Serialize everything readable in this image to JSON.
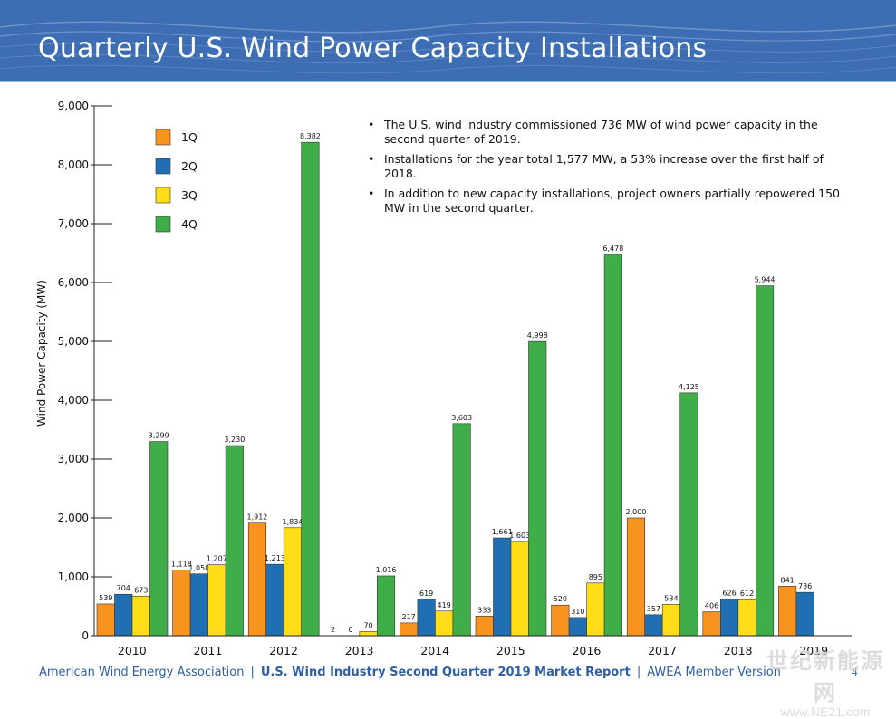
{
  "header": {
    "title": "Quarterly U.S. Wind Power Capacity Installations"
  },
  "notes": [
    "The U.S. wind industry commissioned 736 MW of wind power capacity in the second quarter of 2019.",
    "Installations for the year total 1,577 MW, a 53% increase over the first half of 2018.",
    "In addition to new capacity installations, project owners partially repowered 150 MW in the second quarter."
  ],
  "footer": {
    "org": "American Wind Energy Association",
    "report": "U.S. Wind Industry Second Quarter 2019 Market Report",
    "version": "AWEA Member Version",
    "separator": "|",
    "page": "4"
  },
  "watermark": {
    "text": "世纪新能源网",
    "url": "www.NE21.com"
  },
  "chart_data": {
    "type": "bar",
    "title": "",
    "xlabel": "",
    "ylabel": "Wind Power Capacity (MW)",
    "ylim": [
      0,
      9000
    ],
    "yticks": [
      "0",
      "1,000",
      "2,000",
      "3,000",
      "4,000",
      "5,000",
      "6,000",
      "7,000",
      "8,000",
      "9,000"
    ],
    "categories": [
      "2010",
      "2011",
      "2012",
      "2013",
      "2014",
      "2015",
      "2016",
      "2017",
      "2018",
      "2019"
    ],
    "legend_position": "top-left",
    "series": [
      {
        "name": "1Q",
        "color": "#f7931e",
        "values": [
          539,
          1118,
          1912,
          2,
          217,
          333,
          520,
          2000,
          406,
          841
        ],
        "labels": [
          "539",
          "1,118",
          "1,912",
          "2",
          "217",
          "333",
          "520",
          "2,000",
          "406",
          "841"
        ]
      },
      {
        "name": "2Q",
        "color": "#1f6fb2",
        "values": [
          704,
          1050,
          1213,
          0,
          619,
          1661,
          310,
          357,
          626,
          736
        ],
        "labels": [
          "704",
          "1,050",
          "1,213",
          "0",
          "619",
          "1,661",
          "310",
          "357",
          "626",
          "736"
        ]
      },
      {
        "name": "3Q",
        "color": "#ffde17",
        "values": [
          673,
          1207,
          1834,
          70,
          419,
          1603,
          895,
          534,
          612,
          null
        ],
        "labels": [
          "673",
          "1,207",
          "1,834",
          "70",
          "419",
          "1,603",
          "895",
          "534",
          "612",
          ""
        ]
      },
      {
        "name": "4Q",
        "color": "#3fae49",
        "values": [
          3299,
          3230,
          8382,
          1016,
          3603,
          4998,
          6478,
          4125,
          5944,
          null
        ],
        "labels": [
          "3,299",
          "3,230",
          "8,382",
          "1,016",
          "3,603",
          "4,998",
          "6,478",
          "4,125",
          "5,944",
          ""
        ]
      }
    ]
  }
}
